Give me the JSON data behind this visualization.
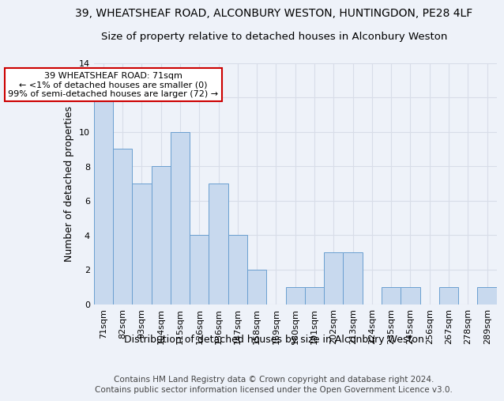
{
  "title1": "39, WHEATSHEAF ROAD, ALCONBURY WESTON, HUNTINGDON, PE28 4LF",
  "title2": "Size of property relative to detached houses in Alconbury Weston",
  "xlabel": "Distribution of detached houses by size in Alconbury Weston",
  "ylabel": "Number of detached properties",
  "categories": [
    "71sqm",
    "82sqm",
    "93sqm",
    "104sqm",
    "115sqm",
    "126sqm",
    "136sqm",
    "147sqm",
    "158sqm",
    "169sqm",
    "180sqm",
    "191sqm",
    "202sqm",
    "213sqm",
    "224sqm",
    "235sqm",
    "245sqm",
    "256sqm",
    "267sqm",
    "278sqm",
    "289sqm"
  ],
  "values": [
    12,
    9,
    7,
    8,
    10,
    4,
    7,
    4,
    2,
    0,
    1,
    1,
    3,
    3,
    0,
    1,
    1,
    0,
    1,
    0,
    1
  ],
  "bar_color": "#c8d9ee",
  "bar_edge_color": "#6a9fd0",
  "annotation_title": "39 WHEATSHEAF ROAD: 71sqm",
  "annotation_line1": "← <1% of detached houses are smaller (0)",
  "annotation_line2": "99% of semi-detached houses are larger (72) →",
  "annotation_box_color": "#ffffff",
  "annotation_border_color": "#cc0000",
  "ylim": [
    0,
    14
  ],
  "yticks": [
    0,
    2,
    4,
    6,
    8,
    10,
    12,
    14
  ],
  "footer1": "Contains HM Land Registry data © Crown copyright and database right 2024.",
  "footer2": "Contains public sector information licensed under the Open Government Licence v3.0.",
  "background_color": "#eef2f9",
  "grid_color": "#d8dde8",
  "title_fontsize": 10,
  "subtitle_fontsize": 9.5,
  "axis_label_fontsize": 9,
  "tick_fontsize": 8,
  "footer_fontsize": 7.5
}
